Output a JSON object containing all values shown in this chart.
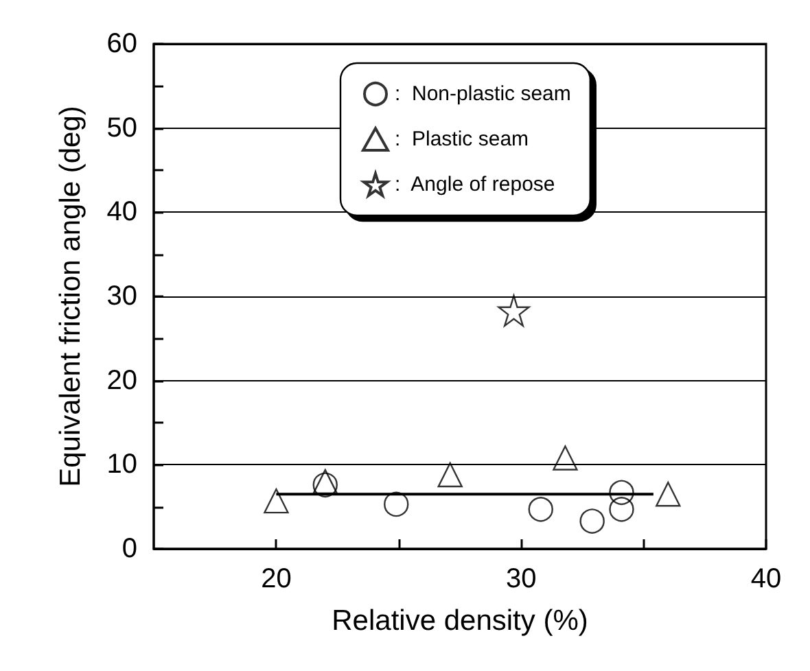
{
  "chart_data": {
    "type": "scatter",
    "xlabel": "Relative density (%)",
    "ylabel": "Equivalent friction angle (deg)",
    "xlim": [
      15,
      40
    ],
    "ylim": [
      0,
      60
    ],
    "xticks": [
      20,
      {
        "value": 25,
        "label": null
      },
      30,
      {
        "value": 35,
        "label": null
      },
      40
    ],
    "yticks": [
      0,
      {
        "value": 5,
        "label": null
      },
      10,
      {
        "value": 15,
        "label": null
      },
      20,
      {
        "value": 25,
        "label": null
      },
      30,
      {
        "value": 35,
        "label": null
      },
      40,
      {
        "value": 45,
        "label": null
      },
      50,
      {
        "value": 55,
        "label": null
      },
      60
    ],
    "grid": "y",
    "legend": "top",
    "series": [
      {
        "name": ":  Non-plastic seam",
        "color": "#000000",
        "marker": "circle",
        "x": [
          22,
          24.9,
          30.8,
          32.9,
          34.1,
          34.1
        ],
        "values": [
          7.6,
          5.3,
          4.7,
          3.3,
          6.7,
          4.7
        ]
      },
      {
        "name": ":  Plastic seam",
        "color": "#000000",
        "marker": "triangle",
        "x": [
          20,
          22,
          27.1,
          31.8,
          36
        ],
        "values": [
          5.7,
          8.0,
          8.8,
          10.8,
          6.5
        ]
      },
      {
        "name": ":  Angle of repose",
        "color": "#000000",
        "marker": "star",
        "x": [
          29.7
        ],
        "values": [
          28.3
        ]
      },
      {
        "type": "line",
        "color": "#000000",
        "marker": "none",
        "line_style": "solid",
        "x": [
          20,
          35.4
        ],
        "values": [
          6.5,
          6.5
        ]
      }
    ]
  }
}
